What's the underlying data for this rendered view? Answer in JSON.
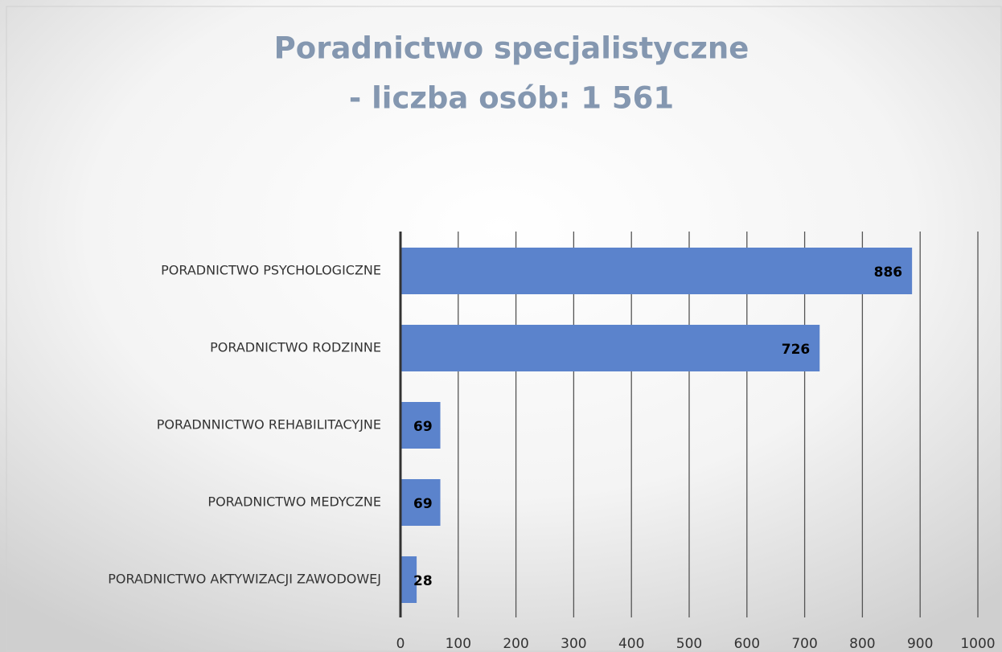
{
  "chart_data": {
    "type": "bar",
    "orientation": "horizontal",
    "title": [
      "Poradnictwo  specjalistyczne",
      "- liczba osób: 1 561"
    ],
    "categories": [
      "PORADNICTWO PSYCHOLOGICZNE",
      "PORADNICTWO RODZINNE",
      "PORADNNICTWO REHABILITACYJNE",
      "PORADNICTWO MEDYCZNE",
      "PORADNICTWO AKTYWIZACJI ZAWODOWEJ"
    ],
    "values": [
      886,
      726,
      69,
      69,
      28
    ],
    "color": "#5b83cc",
    "xlim": [
      0,
      1000
    ],
    "xticks": [
      0,
      100,
      200,
      300,
      400,
      500,
      600,
      700,
      800,
      900,
      1000
    ],
    "grid": true
  }
}
